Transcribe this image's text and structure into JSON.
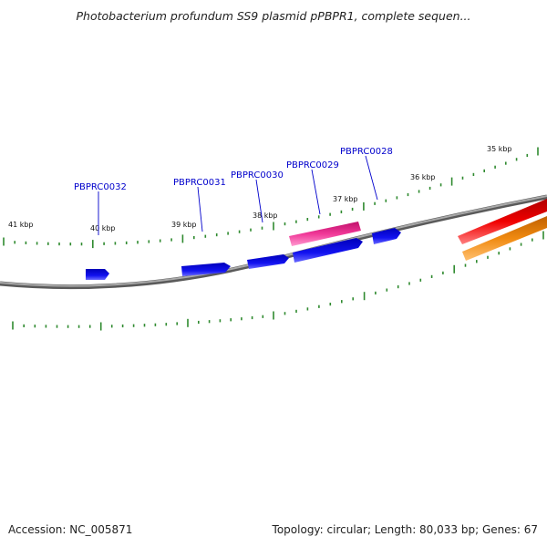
{
  "title": "Photobacterium profundum SS9 plasmid pPBPR1, complete sequen...",
  "footer": {
    "accession": "Accession: NC_005871",
    "summary": "Topology: circular; Length: 80,033 bp; Genes: 67"
  },
  "colors": {
    "backbone": "#7a7a7a",
    "tick": "#2f8a2f",
    "gene_blue": "#0c0cdc",
    "gene_pink": "#e8308c",
    "gene_red": "#e00000",
    "gene_orange": "#f08010",
    "label": "#0000cc"
  },
  "scale_labels": [
    "41 kbp",
    "40 kbp",
    "39 kbp",
    "38 kbp",
    "37 kbp",
    "36 kbp",
    "35 kbp"
  ],
  "gene_labels": [
    "PBPRC0032",
    "PBPRC0031",
    "PBPRC0030",
    "PBPRC0029",
    "PBPRC0028"
  ]
}
